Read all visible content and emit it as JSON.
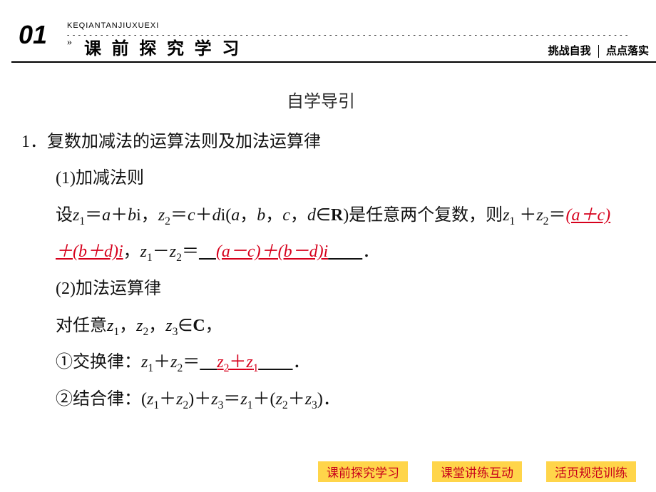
{
  "header": {
    "num": "01",
    "pinyin": "KEQIANTANJIUXUEXI",
    "chev": "»",
    "title": "课 前 探 究 学 习",
    "right_left": "挑战自我",
    "right_right": "点点落实"
  },
  "content": {
    "self_study": "自学导引",
    "line1": "1．复数加减法的运算法则及加法运算律",
    "line2": "(1)加减法则",
    "line3_a": "设",
    "line3_b": "＝",
    "line3_c": "＋",
    "line3_d": "i，",
    "line3_e": "＝",
    "line3_f": "＋",
    "line3_g": "i(",
    "line3_h": "，",
    "line3_i": "，",
    "line3_j": "，",
    "line3_k": "∈",
    "line3_l": ")是任意两个复数，则",
    "line4_a": "＋",
    "line4_b": "＝",
    "ans1": "(a＋c)＋(b＋d)i",
    "line4_c": "，",
    "line4_d": "－",
    "line4_e": "＝",
    "ans2": "(a－c)＋(b－d)i",
    "line4_f": "．",
    "line5": "(2)加法运算律",
    "line6_a": "对任意",
    "line6_b": "，",
    "line6_c": "，",
    "line6_d": "∈",
    "line6_e": "，",
    "line7_a": "①交换律：",
    "line7_b": "＋",
    "line7_c": "＝",
    "ans3_a": "z",
    "ans3_b": "＋",
    "ans3_c": "z",
    "line7_d": "．",
    "line8_a": "②结合律：(",
    "line8_b": "＋",
    "line8_c": ")＋",
    "line8_d": "＝",
    "line8_e": "＋(",
    "line8_f": "＋",
    "line8_g": ")．",
    "z": "z",
    "a": "a",
    "b": "b",
    "c": "c",
    "d": "d",
    "R": "R",
    "C": "C",
    "s1": "1",
    "s2": "2",
    "s3": "3"
  },
  "footer": {
    "btn1": "课前探究学习",
    "btn2": "课堂讲练互动",
    "btn3": "活页规范训练"
  },
  "colors": {
    "red": "#d6001c",
    "yellow": "#ffd54a",
    "black": "#000000"
  }
}
